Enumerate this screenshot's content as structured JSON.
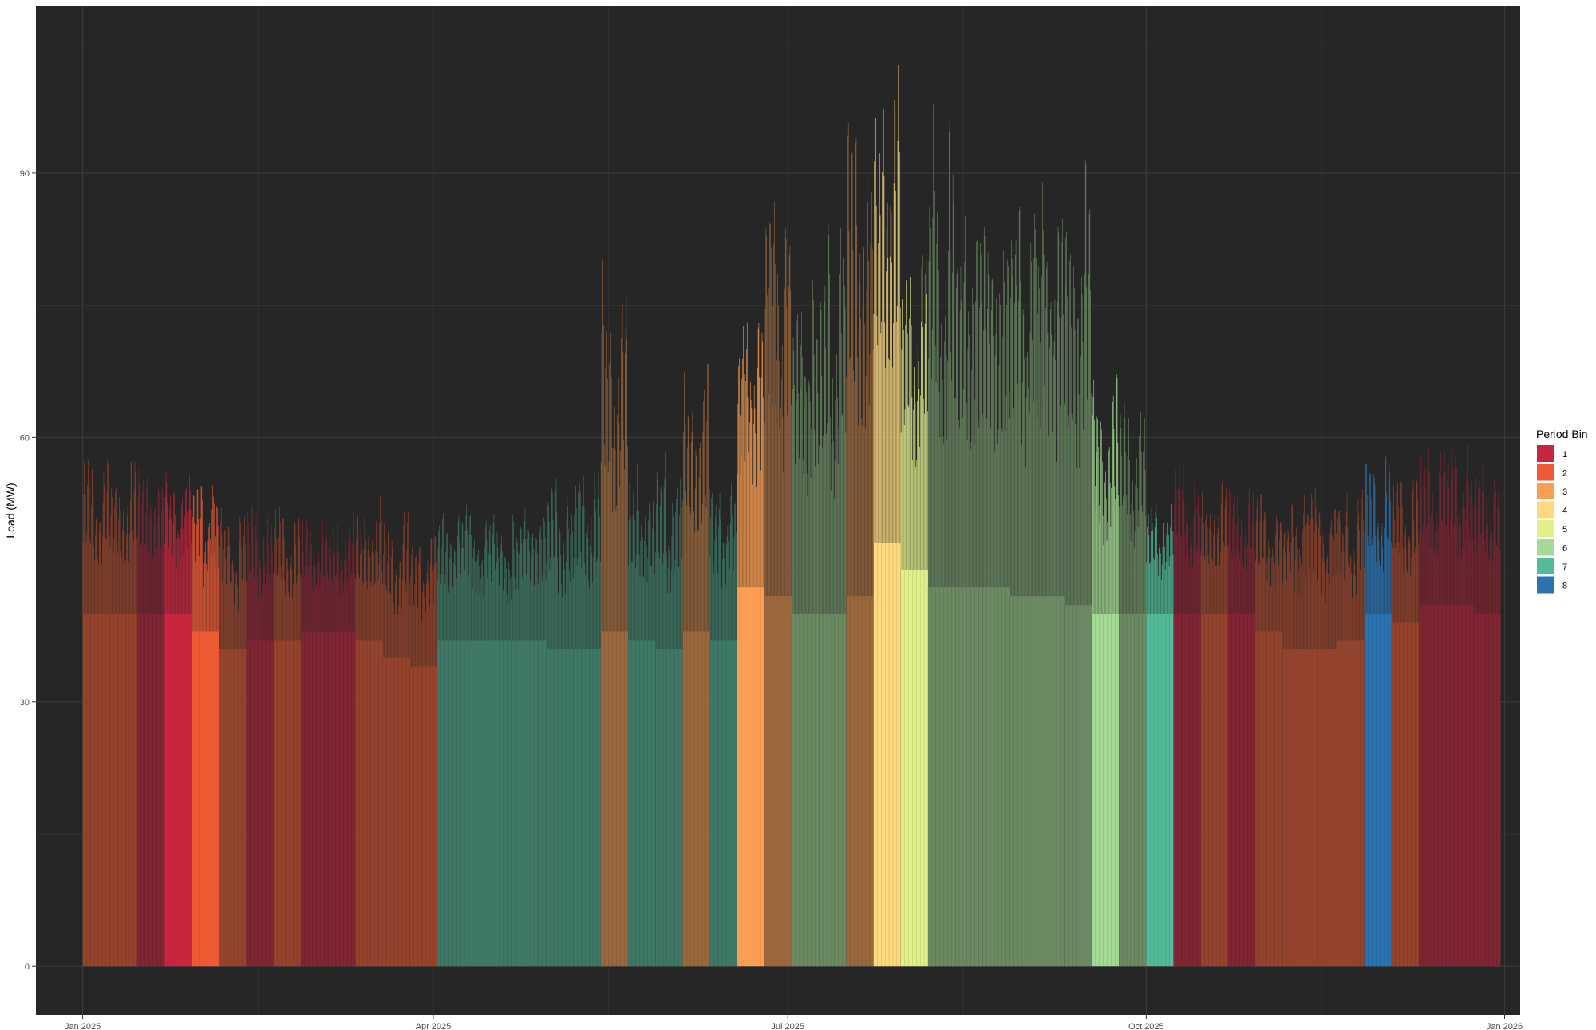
{
  "chart_data": {
    "type": "bar",
    "title": "",
    "xlabel": "",
    "ylabel": "Load (MW)",
    "ylim": [
      -5.5,
      109
    ],
    "xlim": [
      "2024-12-20",
      "2026-01-05"
    ],
    "y_ticks": [
      0,
      30,
      60,
      90
    ],
    "x_ticks": [
      {
        "date": "2025-01-01",
        "label": "Jan 2025"
      },
      {
        "date": "2025-04-01",
        "label": "Apr 2025"
      },
      {
        "date": "2025-07-01",
        "label": "Jul 2025"
      },
      {
        "date": "2025-10-01",
        "label": "Oct 2025"
      },
      {
        "date": "2026-01-01",
        "label": "Jan 2026"
      }
    ],
    "x_minor_ticks": [
      "2025-02-15",
      "2025-05-16",
      "2025-08-15",
      "2025-11-15"
    ],
    "y_minor_ticks": [
      15,
      45,
      75,
      105
    ],
    "grid": true,
    "background": "#262626",
    "gridline_color": "#3a3a3a",
    "legend": {
      "title": "Period Bin",
      "position": "right",
      "items": [
        {
          "label": "1",
          "color": "#c8253e"
        },
        {
          "label": "2",
          "color": "#ee5a33"
        },
        {
          "label": "3",
          "color": "#fb9e52"
        },
        {
          "label": "4",
          "color": "#fdd97f"
        },
        {
          "label": "5",
          "color": "#e2f08c"
        },
        {
          "label": "6",
          "color": "#a4da95"
        },
        {
          "label": "7",
          "color": "#53bb99"
        },
        {
          "label": "8",
          "color": "#2a73b2"
        }
      ]
    },
    "weekly_periods": [
      {
        "start": "2025-01-01",
        "bin": "2",
        "base": 40,
        "peak": 59,
        "highlight": false
      },
      {
        "start": "2025-01-08",
        "bin": "2",
        "base": 40,
        "peak": 59,
        "highlight": false
      },
      {
        "start": "2025-01-15",
        "bin": "1",
        "base": 40,
        "peak": 59,
        "highlight": false
      },
      {
        "start": "2025-01-22",
        "bin": "1",
        "base": 40,
        "peak": 58,
        "highlight": true
      },
      {
        "start": "2025-01-29",
        "bin": "2",
        "base": 38,
        "peak": 57,
        "highlight": true
      },
      {
        "start": "2025-02-05",
        "bin": "2",
        "base": 36,
        "peak": 53,
        "highlight": false
      },
      {
        "start": "2025-02-12",
        "bin": "1",
        "base": 37,
        "peak": 55,
        "highlight": false
      },
      {
        "start": "2025-02-19",
        "bin": "2",
        "base": 37,
        "peak": 55,
        "highlight": false
      },
      {
        "start": "2025-02-26",
        "bin": "1",
        "base": 38,
        "peak": 53,
        "highlight": false
      },
      {
        "start": "2025-03-05",
        "bin": "1",
        "base": 38,
        "peak": 53,
        "highlight": false
      },
      {
        "start": "2025-03-12",
        "bin": "2",
        "base": 37,
        "peak": 55,
        "highlight": false
      },
      {
        "start": "2025-03-19",
        "bin": "2",
        "base": 35,
        "peak": 53,
        "highlight": false
      },
      {
        "start": "2025-03-26",
        "bin": "2",
        "base": 34,
        "peak": 51,
        "highlight": false
      },
      {
        "start": "2025-04-02",
        "bin": "7",
        "base": 37,
        "peak": 53,
        "highlight": false
      },
      {
        "start": "2025-04-09",
        "bin": "7",
        "base": 37,
        "peak": 53,
        "highlight": false
      },
      {
        "start": "2025-04-16",
        "bin": "7",
        "base": 37,
        "peak": 53,
        "highlight": false
      },
      {
        "start": "2025-04-23",
        "bin": "7",
        "base": 37,
        "peak": 55,
        "highlight": false
      },
      {
        "start": "2025-04-30",
        "bin": "7",
        "base": 36,
        "peak": 57,
        "highlight": false
      },
      {
        "start": "2025-05-07",
        "bin": "7",
        "base": 36,
        "peak": 59,
        "highlight": false
      },
      {
        "start": "2025-05-14",
        "bin": "3",
        "base": 38,
        "peak": 85,
        "highlight": false
      },
      {
        "start": "2025-05-21",
        "bin": "7",
        "base": 37,
        "peak": 58,
        "highlight": false
      },
      {
        "start": "2025-05-28",
        "bin": "7",
        "base": 36,
        "peak": 60,
        "highlight": false
      },
      {
        "start": "2025-06-04",
        "bin": "3",
        "base": 38,
        "peak": 70,
        "highlight": false
      },
      {
        "start": "2025-06-11",
        "bin": "7",
        "base": 37,
        "peak": 57,
        "highlight": false
      },
      {
        "start": "2025-06-18",
        "bin": "3",
        "base": 43,
        "peak": 77,
        "highlight": true
      },
      {
        "start": "2025-06-25",
        "bin": "3",
        "base": 42,
        "peak": 95,
        "highlight": false
      },
      {
        "start": "2025-07-02",
        "bin": "6",
        "base": 40,
        "peak": 83,
        "highlight": false
      },
      {
        "start": "2025-07-09",
        "bin": "6",
        "base": 40,
        "peak": 88,
        "highlight": false
      },
      {
        "start": "2025-07-16",
        "bin": "3",
        "base": 42,
        "peak": 101,
        "highlight": false
      },
      {
        "start": "2025-07-23",
        "bin": "4",
        "base": 48,
        "peak": 107,
        "highlight": true
      },
      {
        "start": "2025-07-30",
        "bin": "5",
        "base": 45,
        "peak": 90,
        "highlight": true
      },
      {
        "start": "2025-08-06",
        "bin": "6",
        "base": 43,
        "peak": 101,
        "highlight": false
      },
      {
        "start": "2025-08-13",
        "bin": "6",
        "base": 43,
        "peak": 91,
        "highlight": false
      },
      {
        "start": "2025-08-20",
        "bin": "6",
        "base": 43,
        "peak": 91,
        "highlight": false
      },
      {
        "start": "2025-08-27",
        "bin": "6",
        "base": 42,
        "peak": 93,
        "highlight": false
      },
      {
        "start": "2025-09-03",
        "bin": "6",
        "base": 42,
        "peak": 94,
        "highlight": false
      },
      {
        "start": "2025-09-10",
        "bin": "6",
        "base": 41,
        "peak": 96,
        "highlight": false
      },
      {
        "start": "2025-09-17",
        "bin": "6",
        "base": 40,
        "peak": 69,
        "highlight": true
      },
      {
        "start": "2025-09-24",
        "bin": "6",
        "base": 40,
        "peak": 68,
        "highlight": false
      },
      {
        "start": "2025-10-01",
        "bin": "7",
        "base": 40,
        "peak": 55,
        "highlight": true
      },
      {
        "start": "2025-10-08",
        "bin": "1",
        "base": 40,
        "peak": 59,
        "highlight": false
      },
      {
        "start": "2025-10-15",
        "bin": "2",
        "base": 40,
        "peak": 56,
        "highlight": false
      },
      {
        "start": "2025-10-22",
        "bin": "1",
        "base": 40,
        "peak": 57,
        "highlight": false
      },
      {
        "start": "2025-10-29",
        "bin": "2",
        "base": 38,
        "peak": 55,
        "highlight": false
      },
      {
        "start": "2025-11-05",
        "bin": "2",
        "base": 36,
        "peak": 55,
        "highlight": false
      },
      {
        "start": "2025-11-12",
        "bin": "2",
        "base": 36,
        "peak": 55,
        "highlight": false
      },
      {
        "start": "2025-11-19",
        "bin": "2",
        "base": 37,
        "peak": 55,
        "highlight": false
      },
      {
        "start": "2025-11-26",
        "bin": "8",
        "base": 40,
        "peak": 59,
        "highlight": true
      },
      {
        "start": "2025-12-03",
        "bin": "2",
        "base": 39,
        "peak": 58,
        "highlight": false
      },
      {
        "start": "2025-12-10",
        "bin": "1",
        "base": 41,
        "peak": 61,
        "highlight": false
      },
      {
        "start": "2025-12-17",
        "bin": "1",
        "base": 41,
        "peak": 61,
        "highlight": false
      },
      {
        "start": "2025-12-24",
        "bin": "1",
        "base": 40,
        "peak": 59,
        "highlight": false
      }
    ]
  }
}
